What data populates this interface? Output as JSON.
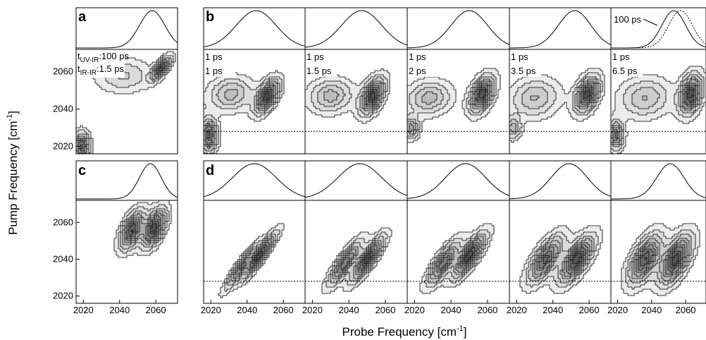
{
  "figure": {
    "ylabel": "Pump Frequency [cm",
    "ylabel_sup": "-1",
    "ylabel_end": "]",
    "xlabel": "Probe Frequency [cm",
    "xlabel_sup": "-1",
    "xlabel_end": "]"
  },
  "chart_data": [
    {
      "panel": "a",
      "type": "heatmap",
      "x_ticks": [
        "2020",
        "2040",
        "2060"
      ],
      "y_ticks": [
        "2020",
        "2040",
        "2060"
      ],
      "xlim": [
        2016,
        2072
      ],
      "ylim": [
        2016,
        2072
      ],
      "annotations": [
        "t",
        "UV-IR",
        ":100 ps",
        "t",
        "IR-IR",
        ":1.5 ps"
      ],
      "features": [
        {
          "x": 2063,
          "y": 2062,
          "sx": 3.5,
          "sy": 4,
          "rho": 0.7,
          "a": 1.0
        },
        {
          "x": 2042,
          "y": 2058,
          "sx": 10,
          "sy": 6,
          "rho": 0,
          "a": 0.35
        },
        {
          "x": 2019,
          "y": 2020,
          "sx": 3,
          "sy": 5,
          "rho": 0,
          "a": 0.9
        }
      ]
    },
    {
      "panel": "b",
      "type": "heatmap",
      "x_ticks": [
        "2020",
        "2040",
        "2060"
      ],
      "xlim": [
        2016,
        2072
      ],
      "ylim": [
        2016,
        2072
      ],
      "dotted_line_pump": 2028,
      "subplots": [
        {
          "label_uvir": "1 ps",
          "label_irir": "1 ps",
          "features": [
            {
              "x": 2051,
              "y": 2047,
              "sx": 4.5,
              "sy": 6,
              "rho": 0.55,
              "a": 1.0
            },
            {
              "x": 2031,
              "y": 2048,
              "sx": 8,
              "sy": 6,
              "rho": 0.1,
              "a": 0.5
            },
            {
              "x": 2019,
              "y": 2026,
              "sx": 3,
              "sy": 6,
              "rho": 0,
              "a": 0.9
            }
          ]
        },
        {
          "label_uvir": "1 ps",
          "label_irir": "1.5 ps",
          "features": [
            {
              "x": 2053,
              "y": 2047,
              "sx": 4.5,
              "sy": 6.5,
              "rho": 0.5,
              "a": 1.0
            },
            {
              "x": 2030,
              "y": 2047,
              "sx": 8,
              "sy": 6,
              "rho": 0.1,
              "a": 0.5
            }
          ]
        },
        {
          "label_uvir": "1 ps",
          "label_irir": "2 ps",
          "features": [
            {
              "x": 2057,
              "y": 2048,
              "sx": 4.5,
              "sy": 6.5,
              "rho": 0.45,
              "a": 1.0
            },
            {
              "x": 2028,
              "y": 2046,
              "sx": 8,
              "sy": 6,
              "rho": 0.1,
              "a": 0.5
            },
            {
              "x": 2018,
              "y": 2030,
              "sx": 3,
              "sy": 4,
              "rho": 0,
              "a": 0.6
            }
          ]
        },
        {
          "label_uvir": "1 ps",
          "label_irir": "3.5 ps",
          "features": [
            {
              "x": 2059,
              "y": 2048,
              "sx": 4.5,
              "sy": 6.5,
              "rho": 0.4,
              "a": 1.0
            },
            {
              "x": 2030,
              "y": 2046,
              "sx": 9,
              "sy": 7,
              "rho": 0.1,
              "a": 0.45
            },
            {
              "x": 2018,
              "y": 2030,
              "sx": 3,
              "sy": 4,
              "rho": 0,
              "a": 0.5
            }
          ]
        },
        {
          "label_uvir": "1 ps",
          "label_irir": "6.5 ps",
          "features": [
            {
              "x": 2063,
              "y": 2048,
              "sx": 4.5,
              "sy": 7,
              "rho": 0.3,
              "a": 1.0
            },
            {
              "x": 2036,
              "y": 2046,
              "sx": 10,
              "sy": 7,
              "rho": 0.1,
              "a": 0.45
            },
            {
              "x": 2019,
              "y": 2026,
              "sx": 3,
              "sy": 5,
              "rho": 0,
              "a": 0.8
            }
          ]
        }
      ],
      "inset_annotation": "100 ps"
    },
    {
      "panel": "c",
      "type": "heatmap",
      "x_ticks": [
        "2020",
        "2040",
        "2060"
      ],
      "y_ticks": [
        "2020",
        "2040",
        "2060"
      ],
      "xlim": [
        2016,
        2072
      ],
      "ylim": [
        2016,
        2072
      ],
      "features": [
        {
          "x": 2047,
          "y": 2056,
          "sx": 4.5,
          "sy": 7,
          "rho": 0.55,
          "a": 0.8
        },
        {
          "x": 2059,
          "y": 2057,
          "sx": 4.5,
          "sy": 7,
          "rho": 0.55,
          "a": 0.85
        }
      ]
    },
    {
      "panel": "d",
      "type": "heatmap",
      "x_ticks": [
        "2020",
        "2040",
        "2060"
      ],
      "xlim": [
        2016,
        2072
      ],
      "ylim": [
        2016,
        2072
      ],
      "dotted_line_pump": 2028,
      "subplots": [
        {
          "features": [
            {
              "x": 2037,
              "y": 2036,
              "sx": 6,
              "sy": 8,
              "rho": 0.92,
              "a": 0.75
            },
            {
              "x": 2047,
              "y": 2042,
              "sx": 6,
              "sy": 8,
              "rho": 0.92,
              "a": 1.0
            }
          ]
        },
        {
          "features": [
            {
              "x": 2038,
              "y": 2038,
              "sx": 6,
              "sy": 8,
              "rho": 0.85,
              "a": 0.8
            },
            {
              "x": 2050,
              "y": 2040,
              "sx": 6,
              "sy": 8,
              "rho": 0.85,
              "a": 0.95
            }
          ]
        },
        {
          "features": [
            {
              "x": 2036,
              "y": 2038,
              "sx": 6,
              "sy": 8,
              "rho": 0.8,
              "a": 0.8
            },
            {
              "x": 2050,
              "y": 2042,
              "sx": 6,
              "sy": 8,
              "rho": 0.8,
              "a": 0.95
            }
          ]
        },
        {
          "features": [
            {
              "x": 2036,
              "y": 2040,
              "sx": 6.5,
              "sy": 8.5,
              "rho": 0.7,
              "a": 0.75
            },
            {
              "x": 2053,
              "y": 2040,
              "sx": 6.5,
              "sy": 8.5,
              "rho": 0.7,
              "a": 0.85
            }
          ]
        },
        {
          "features": [
            {
              "x": 2036,
              "y": 2040,
              "sx": 6.5,
              "sy": 9,
              "rho": 0.6,
              "a": 0.8
            },
            {
              "x": 2054,
              "y": 2040,
              "sx": 6.5,
              "sy": 9,
              "rho": 0.6,
              "a": 0.85
            }
          ]
        }
      ]
    }
  ],
  "spectra": {
    "a": {
      "center": 2058,
      "width": 7
    },
    "b": [
      {
        "center": 2045,
        "width": 11
      },
      {
        "center": 2047,
        "width": 11
      },
      {
        "center": 2050,
        "width": 10
      },
      {
        "center": 2052,
        "width": 9
      },
      {
        "center": 2053,
        "width": 7,
        "dotted_center": 2057
      }
    ],
    "c": {
      "center": 2057,
      "width": 6
    },
    "d": [
      {
        "center": 2044,
        "width": 12
      },
      {
        "center": 2046,
        "width": 12
      },
      {
        "center": 2048,
        "width": 11
      },
      {
        "center": 2049,
        "width": 10
      },
      {
        "center": 2051,
        "width": 8
      }
    ]
  }
}
